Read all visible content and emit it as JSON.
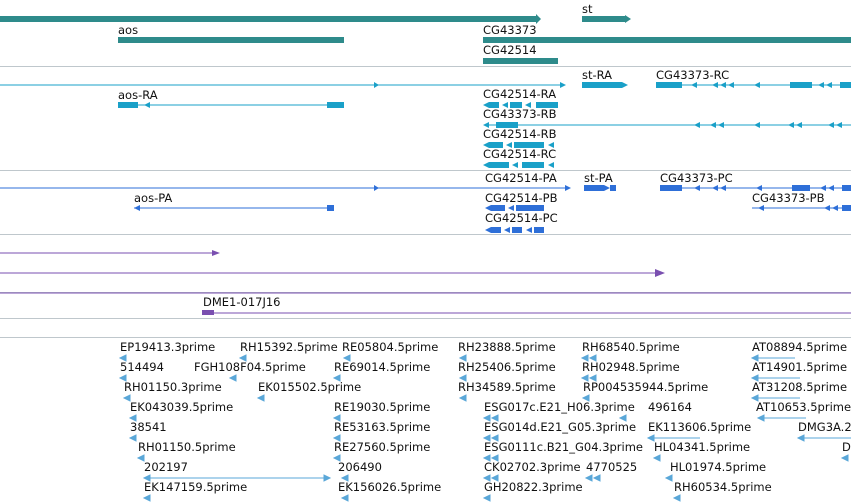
{
  "colors": {
    "gene": "#2e8b8b",
    "transcript_a": "#1aa0c8",
    "transcript_b": "#2e6fd8",
    "purple": "#7a4fb0",
    "est": "#5aa7d8",
    "separator": "#bfc7cc"
  },
  "genes": [
    {
      "label": ""
    },
    {
      "label": "st"
    },
    {
      "label": "aos"
    },
    {
      "label": "CG43373"
    },
    {
      "label": "CG42514"
    }
  ],
  "transcripts_ra": [
    {
      "label": "st-RA"
    },
    {
      "label": "CG43373-RC"
    },
    {
      "label": "aos-RA"
    },
    {
      "label": "CG42514-RA"
    },
    {
      "label": "CG43373-RB"
    },
    {
      "label": "CG42514-RB"
    },
    {
      "label": "CG42514-RC"
    }
  ],
  "transcripts_pa": [
    {
      "label": "CG42514-PA"
    },
    {
      "label": "st-PA"
    },
    {
      "label": "CG43373-PC"
    },
    {
      "label": "aos-PA"
    },
    {
      "label": "CG42514-PB"
    },
    {
      "label": "CG43373-PB"
    },
    {
      "label": "CG42514-PC"
    }
  ],
  "clone": {
    "label": "DME1-017J16"
  },
  "ests": [
    {
      "label": "EP19413.3prime"
    },
    {
      "label": "RH15392.5prime"
    },
    {
      "label": "RE05804.5prime"
    },
    {
      "label": "RH23888.5prime"
    },
    {
      "label": "RH68540.5prime"
    },
    {
      "label": "AT08894.5prime"
    },
    {
      "label": "514494"
    },
    {
      "label": "FGH108F04.5prime"
    },
    {
      "label": "RE69014.5prime"
    },
    {
      "label": "RH25406.5prime"
    },
    {
      "label": "RH02948.5prime"
    },
    {
      "label": "AT14901.5prime"
    },
    {
      "label": "RH01150.3prime"
    },
    {
      "label": "EK015502.5prime"
    },
    {
      "label": "RH34589.5prime"
    },
    {
      "label": "RP004535944.5prime"
    },
    {
      "label": "AT31208.5prime"
    },
    {
      "label": "EK043039.5prime"
    },
    {
      "label": "RE19030.5prime"
    },
    {
      "label": "ESG017c.E21_H06.3prime"
    },
    {
      "label": "496164"
    },
    {
      "label": "AT10653.5prime"
    },
    {
      "label": "38541"
    },
    {
      "label": "RE53163.5prime"
    },
    {
      "label": "ESG014d.E21_G05.3prime"
    },
    {
      "label": "EK113606.5prime"
    },
    {
      "label": "DMG3A.2"
    },
    {
      "label": "RH01150.5prime"
    },
    {
      "label": "RE27560.5prime"
    },
    {
      "label": "ESG0111c.B21_G04.3prime"
    },
    {
      "label": "HL04341.5prime"
    },
    {
      "label": "D"
    },
    {
      "label": "202197"
    },
    {
      "label": "206490"
    },
    {
      "label": "CK02702.3prime"
    },
    {
      "label": "4770525"
    },
    {
      "label": "HL01974.5prime"
    },
    {
      "label": "EK147159.5prime"
    },
    {
      "label": "EK156026.5prime"
    },
    {
      "label": "GH20822.3prime"
    },
    {
      "label": "RH60534.5prime"
    }
  ]
}
